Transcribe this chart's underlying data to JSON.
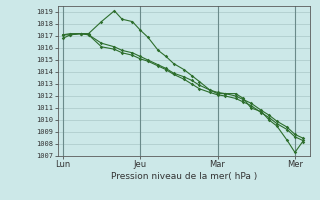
{
  "xlabel": "Pression niveau de la mer( hPa )",
  "background_color": "#cce8e8",
  "plot_bg_color": "#cce8e8",
  "grid_color": "#aac8c8",
  "grid_minor_color": "#bbdada",
  "line_color": "#2d6e2d",
  "spine_color": "#5a5a5a",
  "tick_color": "#333333",
  "ylim": [
    1007,
    1019.5
  ],
  "ytick_min": 1007,
  "ytick_max": 1019,
  "xtick_labels": [
    "Lun",
    "Jeu",
    "Mar",
    "Mer"
  ],
  "xtick_positions": [
    0,
    3,
    6,
    9
  ],
  "vline_color": "#6a8a8a",
  "line1_x": [
    0,
    0.3,
    0.7,
    1.0,
    1.5,
    2.0,
    2.3,
    2.7,
    3.0,
    3.3,
    3.7,
    4.0,
    4.3,
    4.7,
    5.0,
    5.3,
    5.7,
    6.0,
    6.3,
    6.7,
    7.0,
    7.3,
    7.7,
    8.0,
    8.3,
    8.7,
    9.0,
    9.3
  ],
  "line1_y": [
    1016.8,
    1017.1,
    1017.2,
    1017.2,
    1018.2,
    1019.1,
    1018.4,
    1018.2,
    1017.5,
    1016.9,
    1015.8,
    1015.3,
    1014.7,
    1014.2,
    1013.7,
    1013.2,
    1012.5,
    1012.2,
    1012.2,
    1012.2,
    1011.8,
    1011.0,
    1010.7,
    1010.0,
    1009.5,
    1008.3,
    1007.3,
    1008.2
  ],
  "line2_x": [
    0,
    0.3,
    0.7,
    1.0,
    1.5,
    2.0,
    2.3,
    2.7,
    3.0,
    3.3,
    3.7,
    4.0,
    4.3,
    4.7,
    5.0,
    5.3,
    5.7,
    6.0,
    6.3,
    6.7,
    7.0,
    7.3,
    7.7,
    8.0,
    8.3,
    8.7,
    9.0,
    9.3
  ],
  "line2_y": [
    1017.1,
    1017.1,
    1017.2,
    1017.1,
    1016.4,
    1016.1,
    1015.8,
    1015.6,
    1015.3,
    1015.0,
    1014.6,
    1014.3,
    1013.9,
    1013.6,
    1013.3,
    1012.9,
    1012.5,
    1012.3,
    1012.2,
    1012.0,
    1011.7,
    1011.4,
    1010.8,
    1010.4,
    1009.9,
    1009.4,
    1008.8,
    1008.5
  ],
  "line3_x": [
    0,
    0.3,
    0.7,
    1.0,
    1.5,
    2.0,
    2.3,
    2.7,
    3.0,
    3.3,
    3.7,
    4.0,
    4.3,
    4.7,
    5.0,
    5.3,
    5.7,
    6.0,
    6.3,
    6.7,
    7.0,
    7.3,
    7.7,
    8.0,
    8.3,
    8.7,
    9.0,
    9.3
  ],
  "line3_y": [
    1017.1,
    1017.2,
    1017.2,
    1017.1,
    1016.1,
    1015.9,
    1015.6,
    1015.4,
    1015.1,
    1014.9,
    1014.5,
    1014.2,
    1013.8,
    1013.4,
    1013.0,
    1012.6,
    1012.3,
    1012.1,
    1012.0,
    1011.8,
    1011.5,
    1011.2,
    1010.6,
    1010.2,
    1009.7,
    1009.2,
    1008.6,
    1008.3
  ]
}
